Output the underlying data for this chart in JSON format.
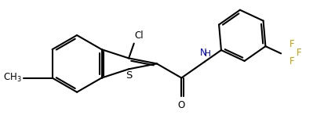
{
  "background_color": "#ffffff",
  "line_color": "#000000",
  "F_color": "#c8a000",
  "N_color": "#0000cd",
  "line_width": 1.5,
  "font_size_atom": 8.5,
  "font_size_label": 8.5,
  "fig_width": 4.14,
  "fig_height": 1.7,
  "dpi": 100,
  "xlim": [
    0,
    11.0
  ],
  "ylim": [
    0,
    4.5
  ]
}
